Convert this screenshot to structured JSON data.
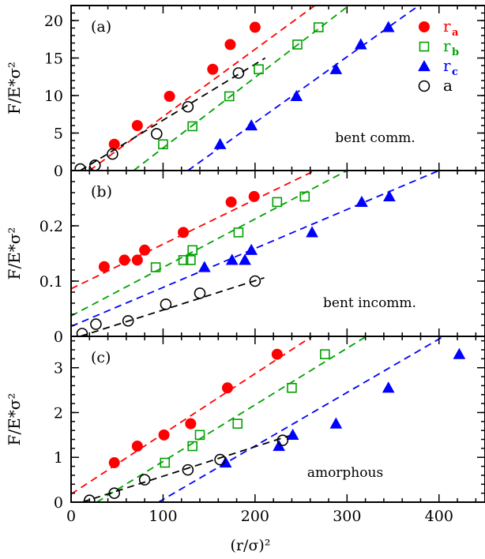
{
  "chart_data": [
    {
      "type": "scatter",
      "panel_label": "(a)",
      "annotation": "bent comm.",
      "ylabel": "F/E*σ²",
      "xlim": [
        0,
        450
      ],
      "ylim": [
        0,
        22
      ],
      "yticks": [
        0,
        5,
        10,
        15,
        20
      ],
      "show_x_ticklabels": false,
      "legend": {
        "placement": "top-right",
        "entries": [
          {
            "base": "r",
            "sub": "a",
            "color": "#ff0000",
            "marker": "filled-circle"
          },
          {
            "base": "r",
            "sub": "b",
            "color": "#00a000",
            "marker": "open-square"
          },
          {
            "base": "r",
            "sub": "c",
            "color": "#0000ff",
            "marker": "filled-triangle"
          },
          {
            "base": "a",
            "sub": "",
            "color": "#000000",
            "marker": "open-circle"
          }
        ]
      },
      "series": [
        {
          "name": "ra",
          "color": "#ff0000",
          "marker": "filled-circle",
          "points": [
            [
              47,
              3.5
            ],
            [
              72,
              6.0
            ],
            [
              107,
              9.9
            ],
            [
              154,
              13.5
            ],
            [
              173,
              16.8
            ],
            [
              200,
              19.1
            ]
          ],
          "fit": [
            [
              20,
              0
            ],
            [
              265,
              22
            ]
          ]
        },
        {
          "name": "rb",
          "color": "#00a000",
          "marker": "open-square",
          "points": [
            [
              100,
              3.5
            ],
            [
              132,
              5.9
            ],
            [
              172,
              9.9
            ],
            [
              204,
              13.5
            ],
            [
              246,
              16.8
            ],
            [
              269,
              19.1
            ]
          ],
          "fit": [
            [
              68,
              0
            ],
            [
              302,
              22
            ]
          ]
        },
        {
          "name": "rc",
          "color": "#0000ff",
          "marker": "filled-triangle",
          "points": [
            [
              162,
              3.5
            ],
            [
              196,
              6.0
            ],
            [
              245,
              9.9
            ],
            [
              288,
              13.5
            ],
            [
              315,
              16.8
            ],
            [
              345,
              19.1
            ]
          ],
          "fit": [
            [
              127,
              0
            ],
            [
              378,
              22
            ]
          ]
        },
        {
          "name": "a",
          "color": "#000000",
          "marker": "open-circle",
          "points": [
            [
              10,
              0.2
            ],
            [
              26,
              0.7
            ],
            [
              45,
              2.2
            ],
            [
              93,
              4.9
            ],
            [
              127,
              8.5
            ],
            [
              182,
              13.0
            ]
          ],
          "fit": [
            [
              10,
              0
            ],
            [
              211,
              15
            ]
          ]
        }
      ]
    },
    {
      "type": "scatter",
      "panel_label": "(b)",
      "annotation": "bent incomm.",
      "ylabel": "F/E*σ²",
      "xlim": [
        0,
        450
      ],
      "ylim": [
        0,
        0.3
      ],
      "yticks": [
        0,
        0.1,
        0.2
      ],
      "show_x_ticklabels": false,
      "series": [
        {
          "name": "ra",
          "color": "#ff0000",
          "marker": "filled-circle",
          "points": [
            [
              36,
              0.126
            ],
            [
              58,
              0.138
            ],
            [
              72,
              0.138
            ],
            [
              80,
              0.156
            ],
            [
              122,
              0.188
            ],
            [
              174,
              0.243
            ],
            [
              199,
              0.253
            ]
          ],
          "fit": [
            [
              0,
              0.086
            ],
            [
              265,
              0.3
            ]
          ]
        },
        {
          "name": "rb",
          "color": "#00a000",
          "marker": "open-square",
          "points": [
            [
              92,
              0.125
            ],
            [
              122,
              0.138
            ],
            [
              130,
              0.138
            ],
            [
              132,
              0.156
            ],
            [
              182,
              0.188
            ],
            [
              224,
              0.243
            ],
            [
              254,
              0.253
            ]
          ],
          "fit": [
            [
              0,
              0.037
            ],
            [
              300,
              0.3
            ]
          ]
        },
        {
          "name": "rc",
          "color": "#0000ff",
          "marker": "filled-triangle",
          "points": [
            [
              145,
              0.125
            ],
            [
              175,
              0.138
            ],
            [
              189,
              0.138
            ],
            [
              196,
              0.156
            ],
            [
              262,
              0.188
            ],
            [
              316,
              0.243
            ],
            [
              346,
              0.253
            ]
          ],
          "fit": [
            [
              0,
              0.018
            ],
            [
              400,
              0.3
            ]
          ]
        },
        {
          "name": "a",
          "color": "#000000",
          "marker": "open-circle",
          "points": [
            [
              12,
              0.005
            ],
            [
              27,
              0.022
            ],
            [
              62,
              0.028
            ],
            [
              103,
              0.058
            ],
            [
              140,
              0.078
            ],
            [
              200,
              0.1
            ]
          ],
          "fit": [
            [
              10,
              0
            ],
            [
              210,
              0.106
            ]
          ]
        }
      ]
    },
    {
      "type": "scatter",
      "panel_label": "(c)",
      "annotation": "amorphous",
      "ylabel": "F/E*σ²",
      "xlabel": "(r/σ)²",
      "xlim": [
        0,
        450
      ],
      "ylim": [
        0,
        3.7
      ],
      "yticks": [
        0,
        1,
        2,
        3
      ],
      "xticks": [
        0,
        100,
        200,
        300,
        400
      ],
      "show_x_ticklabels": true,
      "series": [
        {
          "name": "ra",
          "color": "#ff0000",
          "marker": "filled-circle",
          "points": [
            [
              47,
              0.88
            ],
            [
              72,
              1.25
            ],
            [
              101,
              1.5
            ],
            [
              130,
              1.75
            ],
            [
              170,
              2.55
            ],
            [
              224,
              3.3
            ]
          ],
          "fit": [
            [
              0,
              0.18
            ],
            [
              262,
              3.7
            ]
          ]
        },
        {
          "name": "rb",
          "color": "#00a000",
          "marker": "open-square",
          "points": [
            [
              102,
              0.88
            ],
            [
              132,
              1.25
            ],
            [
              140,
              1.5
            ],
            [
              181,
              1.75
            ],
            [
              240,
              2.55
            ],
            [
              276,
              3.3
            ]
          ],
          "fit": [
            [
              28,
              0
            ],
            [
              321,
              3.7
            ]
          ]
        },
        {
          "name": "rc",
          "color": "#0000ff",
          "marker": "filled-triangle",
          "points": [
            [
              168,
              0.88
            ],
            [
              226,
              1.25
            ],
            [
              241,
              1.5
            ],
            [
              288,
              1.75
            ],
            [
              345,
              2.55
            ],
            [
              422,
              3.3
            ]
          ],
          "fit": [
            [
              95,
              0
            ],
            [
              405,
              3.7
            ]
          ]
        },
        {
          "name": "a",
          "color": "#000000",
          "marker": "open-circle",
          "points": [
            [
              20,
              0.04
            ],
            [
              47,
              0.2
            ],
            [
              80,
              0.5
            ],
            [
              127,
              0.72
            ],
            [
              162,
              0.95
            ],
            [
              230,
              1.38
            ]
          ],
          "fit": [
            [
              12,
              0
            ],
            [
              240,
              1.5
            ]
          ]
        }
      ]
    }
  ]
}
